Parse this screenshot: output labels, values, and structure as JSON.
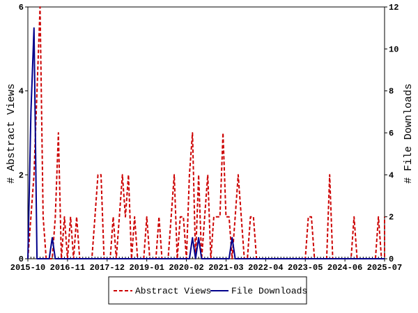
{
  "chart_data": {
    "type": "line",
    "x_tick_labels": [
      "2015-10",
      "2016-11",
      "2017-12",
      "2019-01",
      "2020-02",
      "2021-03",
      "2022-04",
      "2023-05",
      "2024-06",
      "2025-07"
    ],
    "y_left": {
      "label": "# Abstract Views",
      "ylim": [
        0,
        6
      ],
      "ticks": [
        "0",
        "2",
        "4",
        "6"
      ]
    },
    "y_right": {
      "label": "# File Downloads",
      "ylim": [
        0,
        12
      ],
      "ticks": [
        "0",
        "2",
        "4",
        "6",
        "8",
        "10",
        "12"
      ]
    },
    "grid": false,
    "legend_position": "bottom-center",
    "series": [
      {
        "name": "Abstract Views",
        "axis": "left",
        "color": "#cc0000",
        "style": "dashed",
        "points": [
          [
            "2015-10",
            0
          ],
          [
            "2015-11",
            1
          ],
          [
            "2015-12",
            2
          ],
          [
            "2016-01",
            4
          ],
          [
            "2016-02",
            6
          ],
          [
            "2016-03",
            1
          ],
          [
            "2016-04",
            0
          ],
          [
            "2016-05",
            0
          ],
          [
            "2016-06",
            0
          ],
          [
            "2016-07",
            1
          ],
          [
            "2016-08",
            3
          ],
          [
            "2016-09",
            0
          ],
          [
            "2016-10",
            1
          ],
          [
            "2016-11",
            0
          ],
          [
            "2016-12",
            1
          ],
          [
            "2017-01",
            0
          ],
          [
            "2017-02",
            1
          ],
          [
            "2017-03",
            0
          ],
          [
            "2017-04",
            0
          ],
          [
            "2017-05",
            0
          ],
          [
            "2017-06",
            0
          ],
          [
            "2017-07",
            0
          ],
          [
            "2017-08",
            1
          ],
          [
            "2017-09",
            2
          ],
          [
            "2017-10",
            2
          ],
          [
            "2017-11",
            0
          ],
          [
            "2017-12",
            0
          ],
          [
            "2018-01",
            0
          ],
          [
            "2018-02",
            1
          ],
          [
            "2018-03",
            0
          ],
          [
            "2018-04",
            1
          ],
          [
            "2018-05",
            2
          ],
          [
            "2018-06",
            1
          ],
          [
            "2018-07",
            2
          ],
          [
            "2018-08",
            0
          ],
          [
            "2018-09",
            1
          ],
          [
            "2018-10",
            0
          ],
          [
            "2018-11",
            0
          ],
          [
            "2018-12",
            0
          ],
          [
            "2019-01",
            1
          ],
          [
            "2019-02",
            0
          ],
          [
            "2019-03",
            0
          ],
          [
            "2019-04",
            0
          ],
          [
            "2019-05",
            1
          ],
          [
            "2019-06",
            0
          ],
          [
            "2019-07",
            0
          ],
          [
            "2019-08",
            0
          ],
          [
            "2019-09",
            1
          ],
          [
            "2019-10",
            2
          ],
          [
            "2019-11",
            0
          ],
          [
            "2019-12",
            1
          ],
          [
            "2020-01",
            1
          ],
          [
            "2020-02",
            0
          ],
          [
            "2020-03",
            2
          ],
          [
            "2020-04",
            3
          ],
          [
            "2020-05",
            0
          ],
          [
            "2020-06",
            2
          ],
          [
            "2020-07",
            0
          ],
          [
            "2020-08",
            1
          ],
          [
            "2020-09",
            2
          ],
          [
            "2020-10",
            0
          ],
          [
            "2020-11",
            1
          ],
          [
            "2020-12",
            1
          ],
          [
            "2021-01",
            1
          ],
          [
            "2021-02",
            3
          ],
          [
            "2021-03",
            1
          ],
          [
            "2021-04",
            1
          ],
          [
            "2021-05",
            0
          ],
          [
            "2021-06",
            1
          ],
          [
            "2021-07",
            2
          ],
          [
            "2021-08",
            1
          ],
          [
            "2021-09",
            0
          ],
          [
            "2021-10",
            0
          ],
          [
            "2021-11",
            1
          ],
          [
            "2021-12",
            1
          ],
          [
            "2022-01",
            0
          ],
          [
            "2022-02",
            0
          ],
          [
            "2022-03",
            0
          ],
          [
            "2022-04",
            0
          ],
          [
            "2022-05",
            0
          ],
          [
            "2022-06",
            0
          ],
          [
            "2022-07",
            0
          ],
          [
            "2022-08",
            0
          ],
          [
            "2022-09",
            0
          ],
          [
            "2022-10",
            0
          ],
          [
            "2022-11",
            0
          ],
          [
            "2022-12",
            0
          ],
          [
            "2023-01",
            0
          ],
          [
            "2023-02",
            0
          ],
          [
            "2023-03",
            0
          ],
          [
            "2023-04",
            0
          ],
          [
            "2023-05",
            0
          ],
          [
            "2023-06",
            1
          ],
          [
            "2023-07",
            1
          ],
          [
            "2023-08",
            0
          ],
          [
            "2023-09",
            0
          ],
          [
            "2023-10",
            0
          ],
          [
            "2023-11",
            0
          ],
          [
            "2023-12",
            0
          ],
          [
            "2024-01",
            2
          ],
          [
            "2024-02",
            0
          ],
          [
            "2024-03",
            0
          ],
          [
            "2024-04",
            0
          ],
          [
            "2024-05",
            0
          ],
          [
            "2024-06",
            0
          ],
          [
            "2024-07",
            0
          ],
          [
            "2024-08",
            0
          ],
          [
            "2024-09",
            1
          ],
          [
            "2024-10",
            0
          ],
          [
            "2024-11",
            0
          ],
          [
            "2024-12",
            0
          ],
          [
            "2025-01",
            0
          ],
          [
            "2025-02",
            0
          ],
          [
            "2025-03",
            0
          ],
          [
            "2025-04",
            0
          ],
          [
            "2025-05",
            1
          ],
          [
            "2025-06",
            0
          ],
          [
            "2025-07",
            0
          ],
          [
            "2025-08",
            1
          ]
        ]
      },
      {
        "name": "File Downloads",
        "axis": "right",
        "color": "#00008b",
        "style": "solid",
        "points": [
          [
            "2015-10",
            0
          ],
          [
            "2015-11",
            7
          ],
          [
            "2015-12",
            11
          ],
          [
            "2016-01",
            0
          ],
          [
            "2016-02",
            0
          ],
          [
            "2016-03",
            0
          ],
          [
            "2016-04",
            0
          ],
          [
            "2016-05",
            0
          ],
          [
            "2016-06",
            1
          ],
          [
            "2016-07",
            0
          ],
          [
            "2016-08",
            0
          ],
          [
            "2016-09",
            0
          ],
          [
            "2016-10",
            0
          ],
          [
            "2016-11",
            0
          ],
          [
            "2016-12",
            0
          ],
          [
            "2017-01",
            0
          ],
          [
            "2017-02",
            0
          ],
          [
            "2017-03",
            0
          ],
          [
            "2017-04",
            0
          ],
          [
            "2017-05",
            0
          ],
          [
            "2017-06",
            0
          ],
          [
            "2017-07",
            0
          ],
          [
            "2017-08",
            0
          ],
          [
            "2017-09",
            0
          ],
          [
            "2017-10",
            0
          ],
          [
            "2017-11",
            0
          ],
          [
            "2017-12",
            0
          ],
          [
            "2018-01",
            0
          ],
          [
            "2018-02",
            0
          ],
          [
            "2018-03",
            0
          ],
          [
            "2018-04",
            0
          ],
          [
            "2018-05",
            0
          ],
          [
            "2018-06",
            0
          ],
          [
            "2018-07",
            0
          ],
          [
            "2018-08",
            0
          ],
          [
            "2018-09",
            0
          ],
          [
            "2018-10",
            0
          ],
          [
            "2018-11",
            0
          ],
          [
            "2018-12",
            0
          ],
          [
            "2019-01",
            0
          ],
          [
            "2019-02",
            0
          ],
          [
            "2019-03",
            0
          ],
          [
            "2019-04",
            0
          ],
          [
            "2019-05",
            0
          ],
          [
            "2019-06",
            0
          ],
          [
            "2019-07",
            0
          ],
          [
            "2019-08",
            0
          ],
          [
            "2019-09",
            0
          ],
          [
            "2019-10",
            0
          ],
          [
            "2019-11",
            0
          ],
          [
            "2019-12",
            0
          ],
          [
            "2020-01",
            0
          ],
          [
            "2020-02",
            0
          ],
          [
            "2020-03",
            0
          ],
          [
            "2020-04",
            1
          ],
          [
            "2020-05",
            0
          ],
          [
            "2020-06",
            1
          ],
          [
            "2020-07",
            0
          ],
          [
            "2020-08",
            0
          ],
          [
            "2020-09",
            0
          ],
          [
            "2020-10",
            0
          ],
          [
            "2020-11",
            0
          ],
          [
            "2020-12",
            0
          ],
          [
            "2021-01",
            0
          ],
          [
            "2021-02",
            0
          ],
          [
            "2021-03",
            0
          ],
          [
            "2021-04",
            0
          ],
          [
            "2021-05",
            1
          ],
          [
            "2021-06",
            0
          ],
          [
            "2021-07",
            0
          ],
          [
            "2021-08",
            0
          ],
          [
            "2021-09",
            0
          ],
          [
            "2021-10",
            0
          ],
          [
            "2021-11",
            0
          ],
          [
            "2021-12",
            0
          ],
          [
            "2022-01",
            0
          ],
          [
            "2022-02",
            0
          ],
          [
            "2022-03",
            0
          ],
          [
            "2022-04",
            0
          ],
          [
            "2022-05",
            0
          ],
          [
            "2022-06",
            0
          ],
          [
            "2022-07",
            0
          ],
          [
            "2022-08",
            0
          ],
          [
            "2022-09",
            0
          ],
          [
            "2022-10",
            0
          ],
          [
            "2022-11",
            0
          ],
          [
            "2022-12",
            0
          ],
          [
            "2023-01",
            0
          ],
          [
            "2023-02",
            0
          ],
          [
            "2023-03",
            0
          ],
          [
            "2023-04",
            0
          ],
          [
            "2023-05",
            0
          ],
          [
            "2023-06",
            0
          ],
          [
            "2023-07",
            0
          ],
          [
            "2023-08",
            0
          ],
          [
            "2023-09",
            0
          ],
          [
            "2023-10",
            0
          ],
          [
            "2023-11",
            0
          ],
          [
            "2023-12",
            0
          ],
          [
            "2024-01",
            0
          ],
          [
            "2024-02",
            0
          ],
          [
            "2024-03",
            0
          ],
          [
            "2024-04",
            0
          ],
          [
            "2024-05",
            0
          ],
          [
            "2024-06",
            0
          ],
          [
            "2024-07",
            0
          ],
          [
            "2024-08",
            0
          ],
          [
            "2024-09",
            0
          ],
          [
            "2024-10",
            0
          ],
          [
            "2024-11",
            0
          ],
          [
            "2024-12",
            0
          ],
          [
            "2025-01",
            0
          ],
          [
            "2025-02",
            0
          ],
          [
            "2025-03",
            0
          ],
          [
            "2025-04",
            0
          ],
          [
            "2025-05",
            0
          ],
          [
            "2025-06",
            0
          ],
          [
            "2025-07",
            0
          ],
          [
            "2025-08",
            0
          ]
        ]
      }
    ]
  }
}
